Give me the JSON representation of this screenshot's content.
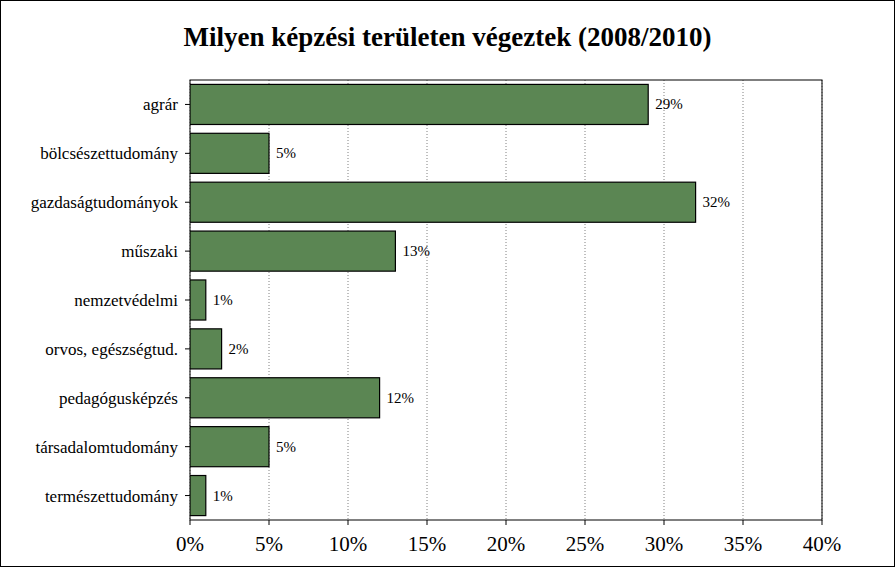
{
  "chart_data": {
    "type": "bar",
    "orientation": "horizontal",
    "title": "Milyen képzési területen végeztek (2008/2010)",
    "categories": [
      "agrár",
      "bölcsészettudomány",
      "gazdaságtudományok",
      "műszaki",
      "nemzetvédelmi",
      "orvos, egészségtud.",
      "pedagógusképzés",
      "társadalomtudomány",
      "természettudomány"
    ],
    "values": [
      29,
      5,
      32,
      13,
      1,
      2,
      12,
      5,
      1
    ],
    "value_labels": [
      "29%",
      "5%",
      "32%",
      "13%",
      "1%",
      "2%",
      "12%",
      "5%",
      "1%"
    ],
    "data_labels": true,
    "color": "#5b8653",
    "xlim": [
      0,
      40
    ],
    "xticks": [
      {
        "value": 0,
        "label": "0%"
      },
      {
        "value": 5,
        "label": "5%"
      },
      {
        "value": 10,
        "label": "10%"
      },
      {
        "value": 15,
        "label": "15%"
      },
      {
        "value": 20,
        "label": "20%"
      },
      {
        "value": 25,
        "label": "25%"
      },
      {
        "value": 30,
        "label": "30%"
      },
      {
        "value": 35,
        "label": "35%"
      },
      {
        "value": 40,
        "label": "40%"
      }
    ],
    "grid": true
  }
}
